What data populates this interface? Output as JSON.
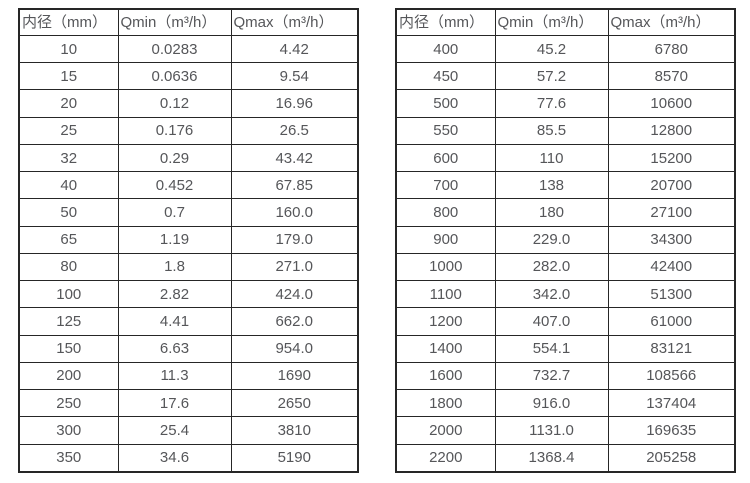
{
  "page": {
    "background": "#ffffff",
    "border_color": "#262626",
    "text_color": "#555659"
  },
  "tables": [
    {
      "columns": [
        "内径（mm）",
        "Qmin（m³/h）",
        "Qmax（m³/h）"
      ],
      "rows": [
        [
          "10",
          "0.0283",
          "4.42"
        ],
        [
          "15",
          "0.0636",
          "9.54"
        ],
        [
          "20",
          "0.12",
          "16.96"
        ],
        [
          "25",
          "0.176",
          "26.5"
        ],
        [
          "32",
          "0.29",
          "43.42"
        ],
        [
          "40",
          "0.452",
          "67.85"
        ],
        [
          "50",
          "0.7",
          "160.0"
        ],
        [
          "65",
          "1.19",
          "179.0"
        ],
        [
          "80",
          "1.8",
          "271.0"
        ],
        [
          "100",
          "2.82",
          "424.0"
        ],
        [
          "125",
          "4.41",
          "662.0"
        ],
        [
          "150",
          "6.63",
          "954.0"
        ],
        [
          "200",
          "11.3",
          "1690"
        ],
        [
          "250",
          "17.6",
          "2650"
        ],
        [
          "300",
          "25.4",
          "3810"
        ],
        [
          "350",
          "34.6",
          "5190"
        ]
      ]
    },
    {
      "columns": [
        "内径（mm）",
        "Qmin（m³/h）",
        "Qmax（m³/h）"
      ],
      "rows": [
        [
          "400",
          "45.2",
          "6780"
        ],
        [
          "450",
          "57.2",
          "8570"
        ],
        [
          "500",
          "77.6",
          "10600"
        ],
        [
          "550",
          "85.5",
          "12800"
        ],
        [
          "600",
          "110",
          "15200"
        ],
        [
          "700",
          "138",
          "20700"
        ],
        [
          "800",
          "180",
          "27100"
        ],
        [
          "900",
          "229.0",
          "34300"
        ],
        [
          "1000",
          "282.0",
          "42400"
        ],
        [
          "1100",
          "342.0",
          "51300"
        ],
        [
          "1200",
          "407.0",
          "61000"
        ],
        [
          "1400",
          "554.1",
          "83121"
        ],
        [
          "1600",
          "732.7",
          "108566"
        ],
        [
          "1800",
          "916.0",
          "137404"
        ],
        [
          "2000",
          "1131.0",
          "169635"
        ],
        [
          "2200",
          "1368.4",
          "205258"
        ]
      ]
    }
  ]
}
